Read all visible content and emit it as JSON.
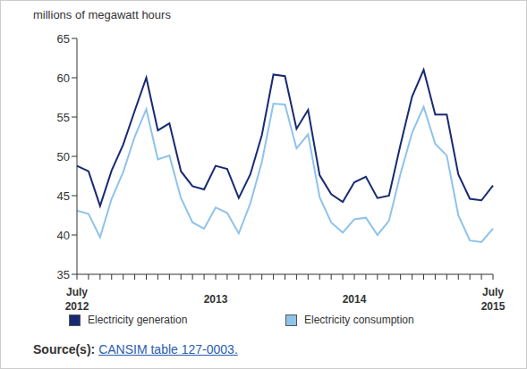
{
  "chart_data": {
    "type": "line",
    "y_label": "millions of megawatt hours",
    "categories": [
      "July 2012",
      null,
      null,
      null,
      null,
      null,
      null,
      null,
      null,
      null,
      null,
      null,
      "2013",
      null,
      null,
      null,
      null,
      null,
      null,
      null,
      null,
      null,
      null,
      null,
      "2014",
      null,
      null,
      null,
      null,
      null,
      null,
      null,
      null,
      null,
      null,
      null,
      "July 2015"
    ],
    "series": [
      {
        "name": "Electricity generation",
        "color": "#172a73",
        "values": [
          48.8,
          48.1,
          43.7,
          48.2,
          51.5,
          55.8,
          60.0,
          53.3,
          54.2,
          48.1,
          46.2,
          45.8,
          48.8,
          48.4,
          44.7,
          47.7,
          52.7,
          60.4,
          60.2,
          53.5,
          55.9,
          47.6,
          45.2,
          44.2,
          46.7,
          47.4,
          44.7,
          45.0,
          51.5,
          57.6,
          61.0,
          55.3,
          55.3,
          47.7,
          44.6,
          44.4,
          46.3
        ]
      },
      {
        "name": "Electricity consumption",
        "color": "#8fc3ea",
        "values": [
          43.1,
          42.7,
          39.7,
          44.6,
          48.0,
          52.5,
          56.0,
          49.6,
          50.1,
          44.7,
          41.6,
          40.8,
          43.5,
          42.8,
          40.2,
          44.0,
          49.3,
          56.7,
          56.6,
          51.0,
          52.8,
          44.8,
          41.6,
          40.3,
          42.0,
          42.2,
          40.0,
          41.8,
          47.8,
          53.0,
          56.3,
          51.6,
          50.1,
          42.5,
          39.3,
          39.1,
          40.8
        ]
      }
    ],
    "ylim": [
      35,
      65
    ],
    "yticks": [
      35,
      40,
      45,
      50,
      55,
      60,
      65
    ],
    "grid": false,
    "legend": "bottom",
    "source": {
      "label": "Source(s):",
      "text": "CANSIM table 127-0003."
    }
  }
}
